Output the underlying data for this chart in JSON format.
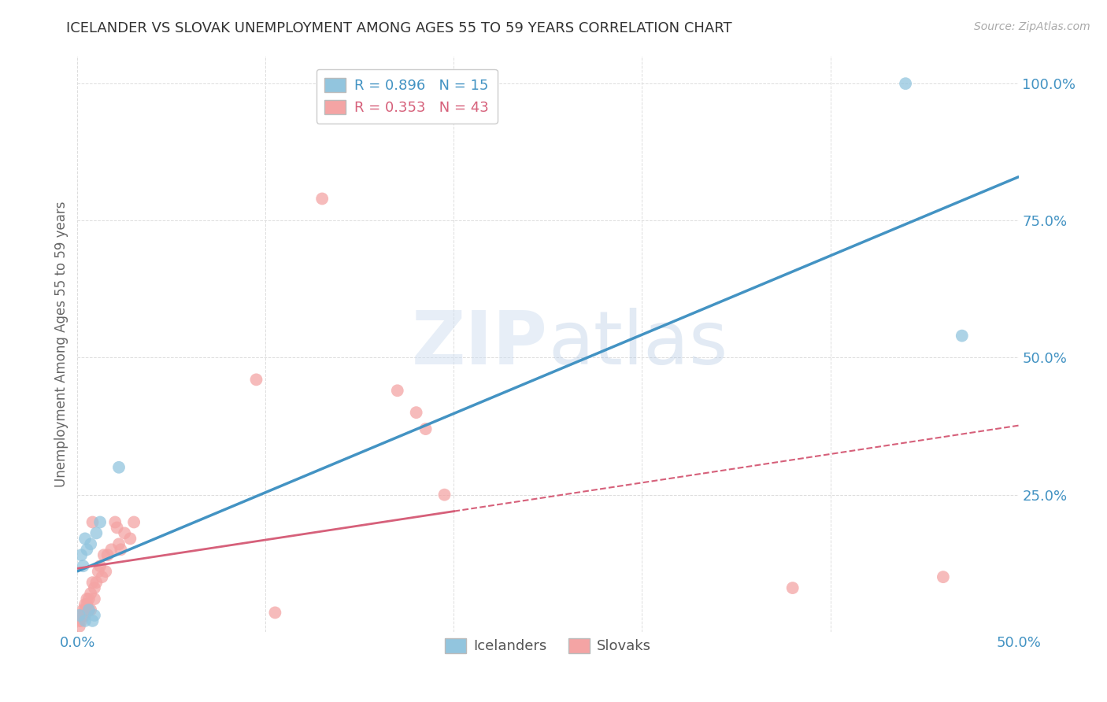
{
  "title": "ICELANDER VS SLOVAK UNEMPLOYMENT AMONG AGES 55 TO 59 YEARS CORRELATION CHART",
  "source": "Source: ZipAtlas.com",
  "ylabel": "Unemployment Among Ages 55 to 59 years",
  "xlim": [
    0.0,
    0.5
  ],
  "ylim": [
    0.0,
    1.05
  ],
  "xticks": [
    0.0,
    0.1,
    0.2,
    0.3,
    0.4,
    0.5
  ],
  "yticks": [
    0.0,
    0.25,
    0.5,
    0.75,
    1.0
  ],
  "ytick_labels": [
    "",
    "25.0%",
    "50.0%",
    "75.0%",
    "100.0%"
  ],
  "xtick_labels": [
    "0.0%",
    "",
    "",
    "",
    "",
    "50.0%"
  ],
  "icelanders_x": [
    0.001,
    0.002,
    0.003,
    0.004,
    0.004,
    0.005,
    0.006,
    0.007,
    0.008,
    0.009,
    0.01,
    0.012,
    0.022,
    0.44,
    0.47
  ],
  "icelanders_y": [
    0.03,
    0.14,
    0.12,
    0.02,
    0.17,
    0.15,
    0.04,
    0.16,
    0.02,
    0.03,
    0.18,
    0.2,
    0.3,
    1.0,
    0.54
  ],
  "slovaks_x": [
    0.001,
    0.001,
    0.002,
    0.002,
    0.003,
    0.003,
    0.004,
    0.004,
    0.004,
    0.005,
    0.005,
    0.006,
    0.006,
    0.007,
    0.007,
    0.008,
    0.008,
    0.009,
    0.009,
    0.01,
    0.011,
    0.012,
    0.013,
    0.014,
    0.015,
    0.016,
    0.018,
    0.02,
    0.021,
    0.022,
    0.023,
    0.025,
    0.028,
    0.03,
    0.095,
    0.105,
    0.13,
    0.17,
    0.18,
    0.185,
    0.195,
    0.38,
    0.46
  ],
  "slovaks_y": [
    0.01,
    0.02,
    0.02,
    0.03,
    0.03,
    0.04,
    0.03,
    0.04,
    0.05,
    0.05,
    0.06,
    0.04,
    0.06,
    0.04,
    0.07,
    0.09,
    0.2,
    0.06,
    0.08,
    0.09,
    0.11,
    0.12,
    0.1,
    0.14,
    0.11,
    0.14,
    0.15,
    0.2,
    0.19,
    0.16,
    0.15,
    0.18,
    0.17,
    0.2,
    0.46,
    0.035,
    0.79,
    0.44,
    0.4,
    0.37,
    0.25,
    0.08,
    0.1
  ],
  "icelander_color": "#92c5de",
  "slovak_color": "#f4a4a4",
  "icelander_line_color": "#4393c3",
  "slovak_line_color": "#d6607a",
  "R_icelander": "0.896",
  "N_icelander": "15",
  "R_slovak": "0.353",
  "N_slovak": "43",
  "watermark_zip": "ZIP",
  "watermark_atlas": "atlas",
  "background_color": "#ffffff",
  "grid_color": "#dddddd",
  "tick_color": "#4393c3",
  "title_color": "#333333",
  "legend_label_color": "#555555",
  "source_color": "#aaaaaa"
}
